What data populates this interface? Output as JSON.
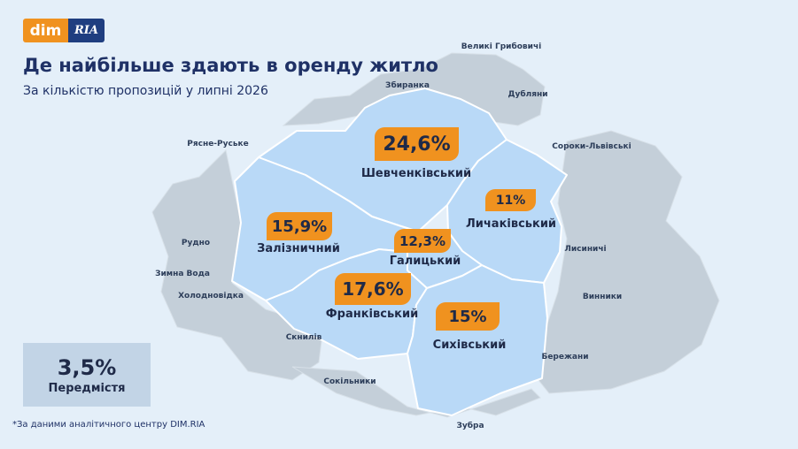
{
  "logo": {
    "part1": "dim",
    "part2": "RIA"
  },
  "title": "Де найбільше здають в оренду житло",
  "subtitle": "За кількістю пропозицій у липні 2026",
  "districts": [
    {
      "name": "Шевченківський",
      "share": "24,6%"
    },
    {
      "name": "Личаківський",
      "share": "11%"
    },
    {
      "name": "Залізничний",
      "share": "15,9%"
    },
    {
      "name": "Галицький",
      "share": "12,3%"
    },
    {
      "name": "Франківський",
      "share": "17,6%"
    },
    {
      "name": "Сихівський",
      "share": "15%"
    }
  ],
  "city_center": {
    "share": "3,5%",
    "label": "Передмістя"
  },
  "suburbs": [
    "Великі Грибовичі",
    "Збиранка",
    "Дубляни",
    "Рясне-Руське",
    "Сороки-Львівські",
    "Рудно",
    "Лисиничі",
    "Зимна Вода",
    "Холодновідка",
    "Винники",
    "Скнилів",
    "Бережани",
    "Сокільники",
    "Зубра"
  ],
  "footnote": "*За даними аналітичного центру DIM.RIA",
  "colors": {
    "accent": "#f0921f",
    "city": "#b9d9f7",
    "suburb_area": "#c4cfd9",
    "background": "#e4eff9",
    "title": "#1f3166"
  }
}
